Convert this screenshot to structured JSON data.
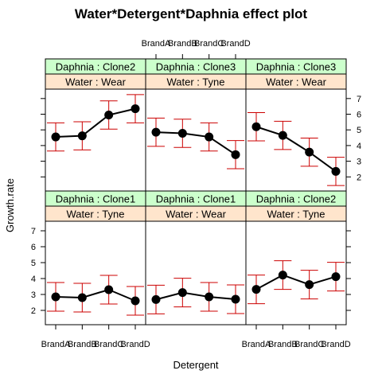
{
  "chart_data": {
    "type": "line",
    "title": "Water*Detergent*Daphnia effect plot",
    "xlabel": "Detergent",
    "ylabel": "Growth.rate",
    "categories": [
      "BrandA",
      "BrandB",
      "BrandC",
      "BrandD"
    ],
    "yticks": [
      2,
      3,
      4,
      5,
      6,
      7
    ],
    "ylim": [
      1.1,
      7.6
    ],
    "colors": {
      "line": "#000000",
      "errorbar": "#cc0000",
      "strip_daphnia": "#ccffcc",
      "strip_water": "#ffe5cc"
    },
    "panels": [
      {
        "daphnia_label": "Daphnia : Clone2",
        "water_label": "Water : Wear",
        "values": [
          4.55,
          4.62,
          5.95,
          6.35
        ],
        "lower": [
          3.65,
          3.72,
          5.05,
          5.45
        ],
        "upper": [
          5.45,
          5.52,
          6.85,
          7.25
        ]
      },
      {
        "daphnia_label": "Daphnia : Clone3",
        "water_label": "Water : Tyne",
        "values": [
          4.85,
          4.78,
          4.55,
          3.42
        ],
        "lower": [
          3.95,
          3.88,
          3.65,
          2.52
        ],
        "upper": [
          5.75,
          5.68,
          5.45,
          4.32
        ]
      },
      {
        "daphnia_label": "Daphnia : Clone3",
        "water_label": "Water : Wear",
        "values": [
          5.2,
          4.65,
          3.58,
          2.35
        ],
        "lower": [
          4.3,
          3.75,
          2.68,
          1.45
        ],
        "upper": [
          6.1,
          5.55,
          4.48,
          3.25
        ]
      },
      {
        "daphnia_label": "Daphnia : Clone1",
        "water_label": "Water : Tyne",
        "values": [
          2.85,
          2.8,
          3.3,
          2.6
        ],
        "lower": [
          1.95,
          1.9,
          2.4,
          1.7
        ],
        "upper": [
          3.75,
          3.7,
          4.2,
          3.5
        ]
      },
      {
        "daphnia_label": "Daphnia : Clone1",
        "water_label": "Water : Wear",
        "values": [
          2.68,
          3.12,
          2.85,
          2.7
        ],
        "lower": [
          1.78,
          2.22,
          1.95,
          1.8
        ],
        "upper": [
          3.58,
          4.02,
          3.75,
          3.6
        ]
      },
      {
        "daphnia_label": "Daphnia : Clone2",
        "water_label": "Water : Tyne",
        "values": [
          3.32,
          4.22,
          3.62,
          4.12
        ],
        "lower": [
          2.42,
          3.32,
          2.72,
          3.22
        ],
        "upper": [
          4.22,
          5.12,
          4.52,
          5.02
        ]
      }
    ]
  }
}
